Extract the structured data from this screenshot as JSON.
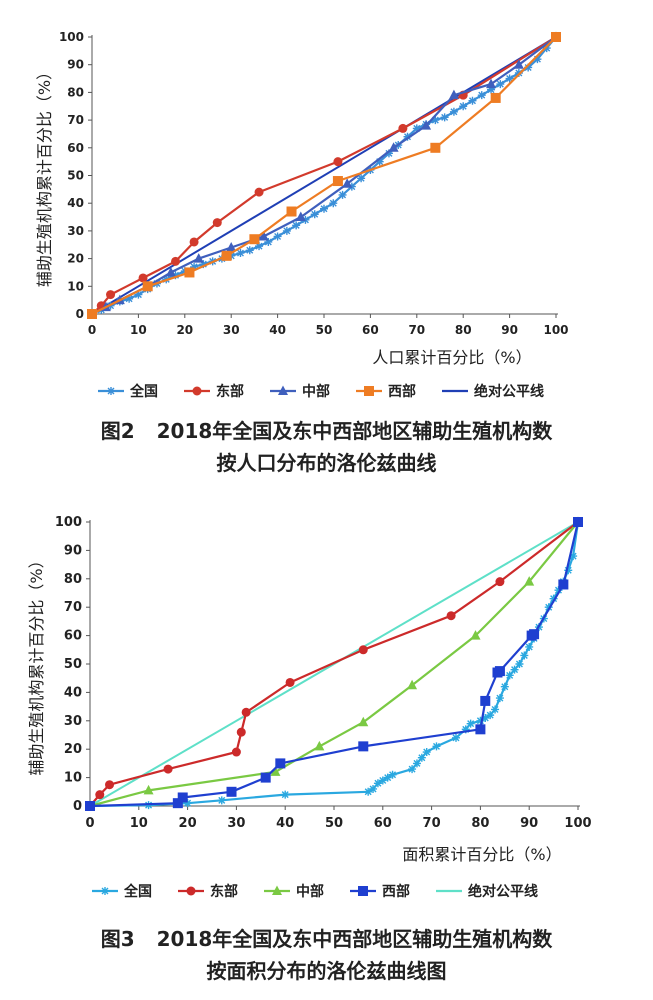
{
  "charts": [
    {
      "caption_num": "图2",
      "caption_line1": "2018年全国及东中西部地区辅助生殖机构数",
      "caption_line2": "按人口分布的洛伦兹曲线"
    },
    {
      "caption_num": "图3",
      "caption_line1": "2018年全国及东中西部地区辅助生殖机构数",
      "caption_line2": "按面积分布的洛伦兹曲线图"
    }
  ],
  "chart_data": [
    {
      "type": "line",
      "xlabel": "人口累计百分比（%）",
      "ylabel": "辅助生殖机构累计百分比（%）",
      "xlim": [
        0,
        100
      ],
      "ylim": [
        0,
        100
      ],
      "xticks": [
        "0",
        "10",
        "20",
        "30",
        "40",
        "50",
        "60",
        "70",
        "80",
        "90",
        "100"
      ],
      "yticks": [
        "0",
        "10",
        "20",
        "30",
        "40",
        "50",
        "60",
        "70",
        "80",
        "90",
        "100"
      ],
      "grid": false,
      "legend_position": "bottom",
      "series": [
        {
          "name": "全国",
          "color": "#3a8fd8",
          "marker": "star",
          "x": [
            0,
            2,
            4,
            6,
            8,
            10,
            12,
            14,
            16,
            18,
            20,
            22,
            24,
            26,
            28,
            30,
            32,
            34,
            36,
            38,
            40,
            42,
            44,
            46,
            48,
            50,
            52,
            54,
            56,
            58,
            60,
            62,
            64,
            66,
            68,
            70,
            72,
            74,
            76,
            78,
            80,
            82,
            84,
            86,
            88,
            90,
            92,
            94,
            96,
            98,
            100
          ],
          "y": [
            0,
            1.5,
            3,
            4.5,
            5.5,
            7,
            9,
            11,
            12.5,
            14,
            15.5,
            17,
            18,
            19,
            20,
            21,
            22,
            23,
            24.5,
            26,
            28,
            30,
            32,
            34,
            36,
            38,
            40,
            43,
            46,
            49,
            52,
            55,
            58,
            61,
            64,
            67,
            68.5,
            70,
            71,
            73,
            75,
            77,
            79,
            81,
            83,
            85,
            87,
            89,
            92,
            96,
            100
          ]
        },
        {
          "name": "东部",
          "color": "#d23a2c",
          "marker": "circle",
          "x": [
            0,
            2,
            4,
            11,
            18,
            22,
            27,
            36,
            53,
            67,
            80,
            100
          ],
          "y": [
            0,
            3,
            7,
            13,
            19,
            26,
            33,
            44,
            55,
            67,
            79,
            100
          ]
        },
        {
          "name": "中部",
          "color": "#3f5fbd",
          "marker": "triangle",
          "x": [
            0,
            3,
            6,
            12,
            17,
            23,
            30,
            37,
            45,
            55,
            65,
            72,
            78,
            86,
            92,
            100
          ],
          "y": [
            0,
            2.5,
            5,
            10,
            15,
            20,
            24,
            28,
            35,
            47,
            60,
            68,
            79,
            83,
            90,
            100
          ]
        },
        {
          "name": "西部",
          "color": "#ee7c23",
          "marker": "square",
          "x": [
            0,
            12,
            21,
            29,
            35,
            43,
            53,
            74,
            87,
            100
          ],
          "y": [
            0,
            10,
            15,
            21,
            27,
            37,
            48,
            60,
            78,
            100
          ]
        },
        {
          "name": "绝对公平线",
          "color": "#1f3fb5",
          "marker": "none",
          "x": [
            0,
            100
          ],
          "y": [
            0,
            100
          ]
        }
      ]
    },
    {
      "type": "line",
      "xlabel": "面积累计百分比（%）",
      "ylabel": "辅助生殖机构累计百分比（%）",
      "xlim": [
        0,
        100
      ],
      "ylim": [
        0,
        100
      ],
      "xticks": [
        "0",
        "10",
        "20",
        "30",
        "40",
        "50",
        "60",
        "70",
        "80",
        "90",
        "100"
      ],
      "yticks": [
        "0",
        "10",
        "20",
        "30",
        "40",
        "50",
        "60",
        "70",
        "80",
        "90",
        "100"
      ],
      "grid": false,
      "legend_position": "bottom",
      "series": [
        {
          "name": "全国",
          "color": "#2aa8e0",
          "marker": "star",
          "x": [
            0,
            12,
            20,
            27,
            40,
            57,
            58,
            59,
            60,
            61,
            62,
            66,
            67,
            68,
            69,
            71,
            75,
            77,
            78,
            80,
            81,
            82,
            83,
            84,
            85,
            86,
            87,
            88,
            89,
            90,
            91,
            92,
            93,
            94,
            95,
            96,
            97,
            98,
            99,
            100
          ],
          "y": [
            0,
            0.3,
            1,
            2,
            4,
            5,
            6,
            8,
            9,
            10,
            11,
            13,
            15,
            17,
            19,
            21,
            24,
            27,
            29,
            30,
            31,
            32,
            34,
            38,
            42,
            46,
            48,
            50,
            53,
            56,
            59,
            63,
            66,
            70,
            73,
            76,
            79,
            83,
            88,
            100
          ]
        },
        {
          "name": "东部",
          "color": "#cc2a2a",
          "marker": "circle",
          "x": [
            0,
            2,
            4,
            16,
            30,
            31,
            32,
            41,
            56,
            74,
            84,
            100
          ],
          "y": [
            0,
            4,
            7.5,
            13,
            19,
            26,
            33,
            43.5,
            55,
            67,
            79,
            100
          ]
        },
        {
          "name": "中部",
          "color": "#7ac943",
          "marker": "triangle",
          "x": [
            0,
            12,
            38,
            47,
            56,
            66,
            79,
            90,
            100
          ],
          "y": [
            0,
            5.5,
            12,
            21,
            29.5,
            42.5,
            60,
            79,
            100
          ]
        },
        {
          "name": "西部",
          "color": "#1f3fd0",
          "marker": "square",
          "x": [
            0,
            18,
            19,
            29,
            36,
            39,
            56,
            80,
            81,
            83.5,
            84,
            90.5,
            91,
            97,
            100
          ],
          "y": [
            0,
            1,
            3,
            5,
            10,
            15,
            21,
            27,
            37,
            47,
            47.5,
            60,
            60.5,
            78,
            100
          ]
        },
        {
          "name": "绝对公平线",
          "color": "#5ee0c8",
          "marker": "none",
          "x": [
            0,
            100
          ],
          "y": [
            0,
            100
          ]
        }
      ]
    }
  ]
}
